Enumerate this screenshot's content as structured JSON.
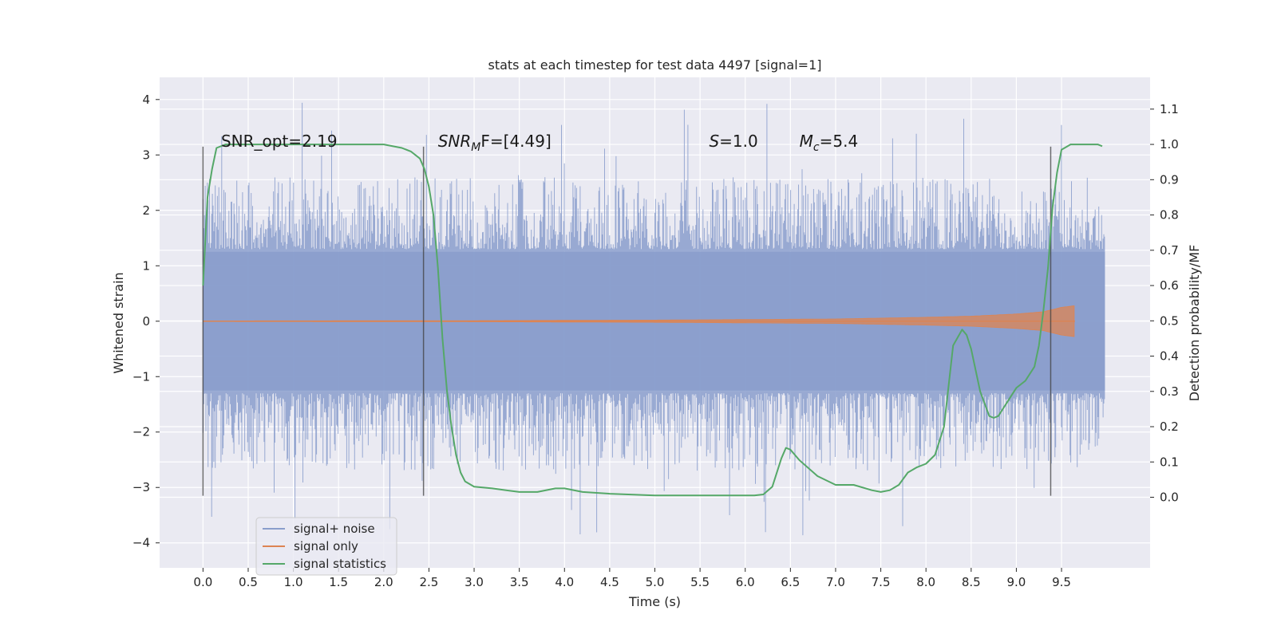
{
  "chart_data": {
    "type": "line",
    "title": "stats at each timestep for test data 4497 [signal=1]",
    "xlabel": "Time (s)",
    "ylabel": "Whitened strain",
    "ylabel_right": "Detection probability/MF",
    "xlim": [
      -0.48,
      10.48
    ],
    "ylim": [
      -4.45,
      4.4
    ],
    "ylim_right": [
      -0.2,
      1.19
    ],
    "x_ticks": [
      "0.0",
      "0.5",
      "1.0",
      "1.5",
      "2.0",
      "2.5",
      "3.0",
      "3.5",
      "4.0",
      "4.5",
      "5.0",
      "5.5",
      "6.0",
      "6.5",
      "7.0",
      "7.5",
      "8.0",
      "8.5",
      "9.0",
      "9.5"
    ],
    "x_tick_values": [
      0.0,
      0.5,
      1.0,
      1.5,
      2.0,
      2.5,
      3.0,
      3.5,
      4.0,
      4.5,
      5.0,
      5.5,
      6.0,
      6.5,
      7.0,
      7.5,
      8.0,
      8.5,
      9.0,
      9.5
    ],
    "y_ticks": [
      "−4",
      "−3",
      "−2",
      "−1",
      "0",
      "1",
      "2",
      "3",
      "4"
    ],
    "y_tick_values": [
      -4,
      -3,
      -2,
      -1,
      0,
      1,
      2,
      3,
      4
    ],
    "y_right_ticks": [
      "0.0",
      "0.1",
      "0.2",
      "0.3",
      "0.4",
      "0.5",
      "0.6",
      "0.7",
      "0.8",
      "0.9",
      "1.0",
      "1.1"
    ],
    "y_right_tick_values": [
      0.0,
      0.1,
      0.2,
      0.3,
      0.4,
      0.5,
      0.6,
      0.7,
      0.8,
      0.9,
      1.0,
      1.1
    ],
    "grid": true,
    "legend_position": "bottom-left",
    "annotations": [
      {
        "text": "SNR_opt=2.19",
        "x": 0.2
      },
      {
        "text": "SNR",
        "sub": "M",
        "tail": "F=[4.49]",
        "x": 2.6
      },
      {
        "text": "S",
        "tail": "=1.0",
        "x": 5.6
      },
      {
        "text": "M",
        "sub": "c",
        "tail": "=5.4",
        "x": 6.6
      }
    ],
    "vlines": [
      0.0,
      2.44,
      9.38
    ],
    "series": [
      {
        "name": "signal+ noise",
        "color": "#8a9ecc",
        "style": "noise",
        "x_range": [
          0.0,
          9.98
        ],
        "core_sigma": 1.25,
        "peak_max": 3.95,
        "peak_min": -4.05
      },
      {
        "name": "signal only",
        "color": "#dd8452",
        "style": "chirp",
        "envelope": {
          "x": [
            0.0,
            3.0,
            5.0,
            7.0,
            8.0,
            8.5,
            9.0,
            9.3,
            9.5,
            9.65
          ],
          "amp": [
            0.005,
            0.01,
            0.02,
            0.04,
            0.07,
            0.09,
            0.13,
            0.17,
            0.25,
            0.28
          ]
        }
      },
      {
        "name": "signal statistics",
        "color": "#55a868",
        "style": "line",
        "axis": "right",
        "x": [
          0.0,
          0.05,
          0.1,
          0.15,
          0.25,
          0.5,
          1.0,
          1.5,
          1.8,
          2.0,
          2.2,
          2.3,
          2.4,
          2.45,
          2.5,
          2.55,
          2.6,
          2.65,
          2.7,
          2.75,
          2.8,
          2.85,
          2.9,
          3.0,
          3.2,
          3.5,
          3.7,
          3.9,
          4.0,
          4.2,
          4.5,
          5.0,
          5.5,
          5.8,
          6.0,
          6.1,
          6.2,
          6.3,
          6.4,
          6.45,
          6.5,
          6.6,
          6.8,
          7.0,
          7.2,
          7.4,
          7.5,
          7.6,
          7.7,
          7.8,
          7.9,
          8.0,
          8.1,
          8.2,
          8.3,
          8.4,
          8.45,
          8.5,
          8.6,
          8.7,
          8.75,
          8.8,
          8.9,
          9.0,
          9.1,
          9.2,
          9.25,
          9.3,
          9.35,
          9.4,
          9.45,
          9.5,
          9.6,
          9.7,
          9.8,
          9.9,
          9.95
        ],
        "y": [
          0.6,
          0.85,
          0.93,
          0.99,
          1.0,
          1.0,
          1.0,
          1.0,
          1.0,
          1.0,
          0.99,
          0.98,
          0.96,
          0.93,
          0.88,
          0.8,
          0.65,
          0.45,
          0.3,
          0.2,
          0.12,
          0.07,
          0.045,
          0.03,
          0.025,
          0.015,
          0.015,
          0.025,
          0.025,
          0.015,
          0.01,
          0.005,
          0.005,
          0.005,
          0.005,
          0.005,
          0.008,
          0.03,
          0.11,
          0.14,
          0.135,
          0.105,
          0.06,
          0.035,
          0.035,
          0.02,
          0.015,
          0.02,
          0.035,
          0.07,
          0.085,
          0.095,
          0.12,
          0.2,
          0.43,
          0.475,
          0.46,
          0.42,
          0.3,
          0.23,
          0.225,
          0.23,
          0.27,
          0.31,
          0.33,
          0.37,
          0.43,
          0.53,
          0.65,
          0.82,
          0.92,
          0.985,
          1.0,
          1.0,
          1.0,
          1.0,
          0.995
        ]
      }
    ]
  }
}
